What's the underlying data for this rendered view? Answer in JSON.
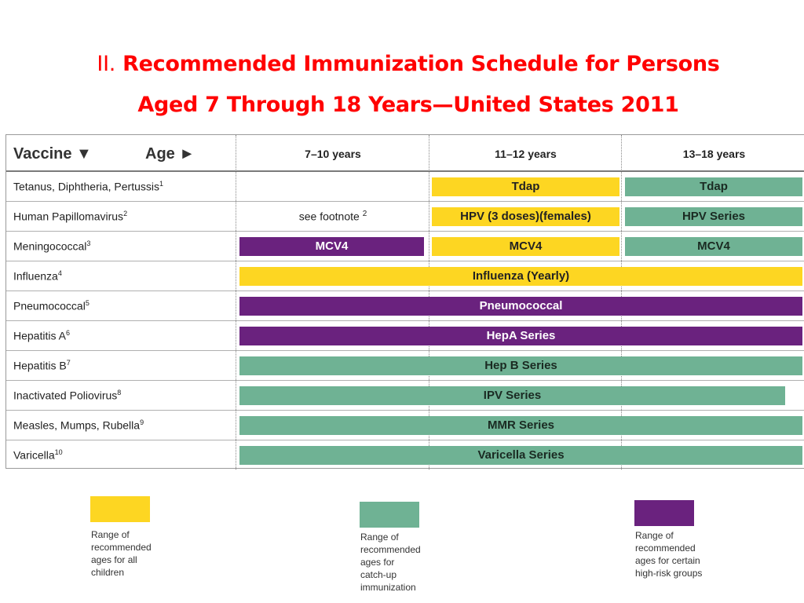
{
  "title": {
    "prefix": "II.",
    "line1": "Recommended Immunization Schedule for Persons",
    "line2": "Aged 7 Through 18 Years—United States  2011"
  },
  "table": {
    "header": {
      "vaccine": "Vaccine ▼",
      "age": "Age ►",
      "col1": "7–10 years",
      "col2": "11–12 years",
      "col3": "13–18 years"
    },
    "rows": [
      {
        "name": "Tetanus, Diphtheria, Pertussis",
        "sup": "1",
        "col2": "Tdap",
        "col3": "Tdap"
      },
      {
        "name": "Human Papillomavirus",
        "sup": "2",
        "col1_note": "see footnote",
        "col1_note_sup": "2",
        "col2": "HPV (3 doses)(females)",
        "col3": "HPV Series"
      },
      {
        "name": "Meningococcal",
        "sup": "3",
        "col1": "MCV4",
        "col2": "MCV4",
        "col3": "MCV4"
      },
      {
        "name": "Influenza",
        "sup": "4",
        "span": "Influenza (Yearly)"
      },
      {
        "name": "Pneumococcal",
        "sup": "5",
        "span": "Pneumococcal"
      },
      {
        "name": "Hepatitis A",
        "sup": "6",
        "span": "HepA Series"
      },
      {
        "name": "Hepatitis B",
        "sup": "7",
        "span": "Hep B Series"
      },
      {
        "name": "Inactivated Poliovirus",
        "sup": "8",
        "span": "IPV Series"
      },
      {
        "name": "Measles, Mumps, Rubella",
        "sup": "9",
        "span": "MMR Series"
      },
      {
        "name": "Varicella",
        "sup": "10",
        "span": "Varicella Series"
      }
    ]
  },
  "colors": {
    "yellow": "#fdd622",
    "green": "#6fb294",
    "purple": "#6a227e",
    "title": "#ff0000"
  },
  "legend": [
    {
      "color": "yellow",
      "lines": [
        "Range of",
        "recommended",
        "ages for all",
        "children"
      ]
    },
    {
      "color": "green",
      "lines": [
        "Range of",
        "recommended",
        "ages for",
        "catch-up",
        "immunization"
      ]
    },
    {
      "color": "purple",
      "lines": [
        "Range of",
        "recommended",
        "ages for certain",
        "high-risk groups"
      ]
    }
  ]
}
